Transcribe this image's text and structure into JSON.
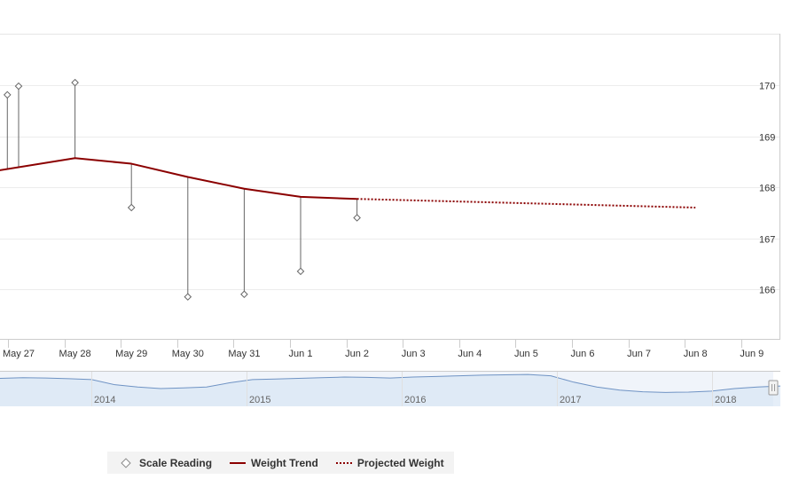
{
  "chart_data": {
    "type": "line",
    "categories": [
      "May 27",
      "May 28",
      "May 29",
      "May 30",
      "May 31",
      "Jun 1",
      "Jun 2",
      "Jun 3",
      "Jun 4",
      "Jun 5",
      "Jun 6",
      "Jun 7",
      "Jun 8",
      "Jun 9"
    ],
    "y_ticks": [
      166,
      167,
      168,
      169,
      170
    ],
    "ylim": [
      165,
      171
    ],
    "grid": true,
    "series": [
      {
        "name": "Scale Reading",
        "style": "diamond-markers",
        "color": "#888888",
        "points": [
          {
            "x": -0.2,
            "y": 169.81
          },
          {
            "x": 0,
            "y": 169.98
          },
          {
            "x": 1,
            "y": 170.05
          },
          {
            "x": 2,
            "y": 167.6
          },
          {
            "x": 3,
            "y": 165.85
          },
          {
            "x": 4,
            "y": 165.9
          },
          {
            "x": 5,
            "y": 166.35
          },
          {
            "x": 6,
            "y": 167.4
          }
        ]
      },
      {
        "name": "Weight Trend",
        "style": "solid",
        "color": "#8b0000",
        "points": [
          {
            "x": -1.3,
            "y": 168.16
          },
          {
            "x": 1,
            "y": 168.57
          },
          {
            "x": 2,
            "y": 168.46
          },
          {
            "x": 3,
            "y": 168.2
          },
          {
            "x": 4,
            "y": 167.97
          },
          {
            "x": 5,
            "y": 167.81
          },
          {
            "x": 6,
            "y": 167.77
          }
        ]
      },
      {
        "name": "Projected Weight",
        "style": "dotted",
        "color": "#8b0000",
        "points": [
          {
            "x": 6,
            "y": 167.77
          },
          {
            "x": 12,
            "y": 167.6
          }
        ]
      }
    ],
    "navigator": {
      "years": [
        "2014",
        "2015",
        "2016",
        "2017",
        "2018"
      ],
      "series": [
        0.82,
        0.84,
        0.83,
        0.81,
        0.78,
        0.62,
        0.55,
        0.5,
        0.52,
        0.55,
        0.68,
        0.78,
        0.8,
        0.82,
        0.84,
        0.86,
        0.85,
        0.83,
        0.86,
        0.88,
        0.9,
        0.92,
        0.93,
        0.94,
        0.9,
        0.7,
        0.55,
        0.45,
        0.4,
        0.38,
        0.39,
        0.42,
        0.5,
        0.55,
        0.58
      ]
    }
  },
  "legend": {
    "items": [
      {
        "label": "Scale Reading"
      },
      {
        "label": "Weight Trend"
      },
      {
        "label": "Projected Weight"
      }
    ]
  }
}
